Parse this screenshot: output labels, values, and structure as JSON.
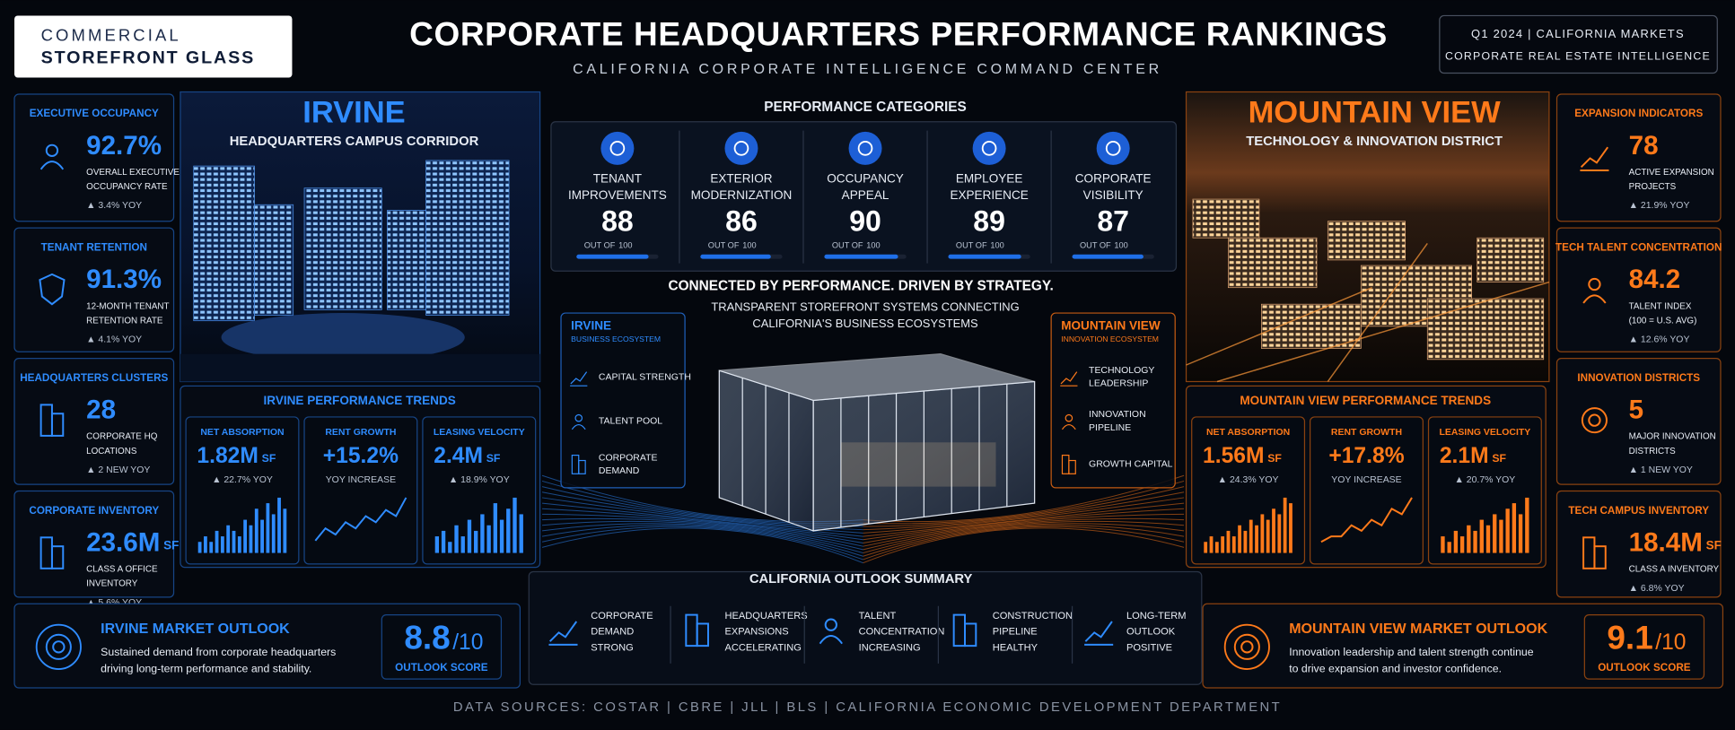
{
  "logo": {
    "line1": "COMMERCIAL",
    "line2": "STOREFRONT GLASS"
  },
  "header": {
    "title": "CORPORATE HEADQUARTERS PERFORMANCE RANKINGS",
    "subtitle": "CALIFORNIA CORPORATE INTELLIGENCE COMMAND CENTER",
    "period": "Q1 2024  |  CALIFORNIA MARKETS",
    "tagline": "CORPORATE REAL ESTATE INTELLIGENCE"
  },
  "left_metrics": [
    {
      "title": "EXECUTIVE OCCUPANCY",
      "value": "92.7%",
      "desc": [
        "OVERALL EXECUTIVE",
        "OCCUPANCY RATE"
      ],
      "change": "▲ 3.4% YOY"
    },
    {
      "title": "TENANT RETENTION",
      "value": "91.3%",
      "desc": [
        "12-MONTH TENANT",
        "RETENTION RATE"
      ],
      "change": "▲ 4.1% YOY"
    },
    {
      "title": "HEADQUARTERS CLUSTERS",
      "value": "28",
      "desc": [
        "CORPORATE HQ",
        "LOCATIONS"
      ],
      "change": "▲ 2 NEW YOY"
    },
    {
      "title": "CORPORATE INVENTORY",
      "value": "23.6M",
      "unit": "SF",
      "desc": [
        "CLASS A OFFICE",
        "INVENTORY"
      ],
      "change": "▲ 5.6% YOY"
    }
  ],
  "right_metrics": [
    {
      "title": "EXPANSION INDICATORS",
      "value": "78",
      "desc": [
        "ACTIVE EXPANSION",
        "PROJECTS"
      ],
      "change": "▲ 21.9% YOY"
    },
    {
      "title": "TECH TALENT CONCENTRATION",
      "value": "84.2",
      "desc": [
        "TALENT INDEX",
        "(100 = U.S. AVG)"
      ],
      "change": "▲ 12.6% YOY"
    },
    {
      "title": "INNOVATION DISTRICTS",
      "value": "5",
      "desc": [
        "MAJOR INNOVATION",
        "DISTRICTS"
      ],
      "change": "▲ 1 NEW YOY"
    },
    {
      "title": "TECH CAMPUS INVENTORY",
      "value": "18.4M",
      "unit": "SF",
      "desc": [
        "CLASS A INVENTORY"
      ],
      "change": "▲ 6.8% YOY"
    }
  ],
  "irvine": {
    "name": "IRVINE",
    "subtitle": "HEADQUARTERS CAMPUS CORRIDOR",
    "trends_title": "IRVINE PERFORMANCE TRENDS",
    "trends": [
      {
        "label": "NET ABSORPTION",
        "value": "1.82M",
        "unit": "SF",
        "note": "▲ 22.7% YOY",
        "chart": "bar",
        "series": [
          2,
          3,
          2,
          4,
          3,
          5,
          4,
          3,
          6,
          5,
          8,
          6,
          9,
          7,
          10,
          8
        ]
      },
      {
        "label": "RENT GROWTH",
        "value": "+15.2%",
        "note": "YOY INCREASE",
        "chart": "line",
        "series": [
          2,
          4,
          3,
          5,
          4,
          6,
          5,
          7,
          6,
          9
        ]
      },
      {
        "label": "LEASING VELOCITY",
        "value": "2.4M",
        "unit": "SF",
        "note": "▲ 18.9% YOY",
        "chart": "bar",
        "series": [
          3,
          4,
          2,
          5,
          3,
          6,
          4,
          7,
          5,
          9,
          6,
          8,
          10,
          7
        ]
      }
    ]
  },
  "mountain_view": {
    "name": "MOUNTAIN VIEW",
    "subtitle": "TECHNOLOGY & INNOVATION DISTRICT",
    "trends_title": "MOUNTAIN VIEW PERFORMANCE TRENDS",
    "trends": [
      {
        "label": "NET ABSORPTION",
        "value": "1.56M",
        "unit": "SF",
        "note": "▲ 24.3% YOY",
        "chart": "bar",
        "series": [
          2,
          3,
          2,
          3,
          4,
          3,
          5,
          4,
          6,
          5,
          7,
          6,
          8,
          7,
          10,
          9
        ]
      },
      {
        "label": "RENT GROWTH",
        "value": "+17.8%",
        "note": "YOY INCREASE",
        "chart": "line",
        "series": [
          2,
          3,
          3,
          5,
          4,
          6,
          5,
          8,
          7,
          10
        ]
      },
      {
        "label": "LEASING VELOCITY",
        "value": "2.1M",
        "unit": "SF",
        "note": "▲ 20.7% YOY",
        "chart": "bar",
        "series": [
          3,
          2,
          4,
          3,
          5,
          4,
          6,
          5,
          7,
          6,
          8,
          9,
          7,
          10
        ]
      }
    ]
  },
  "categories": {
    "title": "PERFORMANCE CATEGORIES",
    "scale": {
      "prefix": "OUT OF",
      "max": 100
    },
    "items": [
      {
        "name": [
          "TENANT",
          "IMPROVEMENTS"
        ],
        "score": 88
      },
      {
        "name": [
          "EXTERIOR",
          "MODERNIZATION"
        ],
        "score": 86
      },
      {
        "name": [
          "OCCUPANCY",
          "APPEAL"
        ],
        "score": 90
      },
      {
        "name": [
          "EMPLOYEE",
          "EXPERIENCE"
        ],
        "score": 89
      },
      {
        "name": [
          "CORPORATE",
          "VISIBILITY"
        ],
        "score": 87
      }
    ]
  },
  "center": {
    "headline": "CONNECTED BY PERFORMANCE. DRIVEN BY STRATEGY.",
    "sub": [
      "TRANSPARENT STOREFRONT SYSTEMS CONNECTING",
      "CALIFORNIA'S BUSINESS ECOSYSTEMS"
    ],
    "irvine_eco": {
      "title": "IRVINE",
      "subtitle": "BUSINESS ECOSYSTEM",
      "items": [
        [
          "CAPITAL STRENGTH"
        ],
        [
          "TALENT POOL"
        ],
        [
          "CORPORATE",
          "DEMAND"
        ]
      ]
    },
    "mv_eco": {
      "title": "MOUNTAIN VIEW",
      "subtitle": "INNOVATION ECOSYSTEM",
      "items": [
        [
          "TECHNOLOGY",
          "LEADERSHIP"
        ],
        [
          "INNOVATION",
          "PIPELINE"
        ],
        [
          "GROWTH CAPITAL"
        ]
      ]
    }
  },
  "outlook_summary": {
    "title": "CALIFORNIA OUTLOOK SUMMARY",
    "items": [
      [
        "CORPORATE",
        "DEMAND",
        "STRONG"
      ],
      [
        "HEADQUARTERS",
        "EXPANSIONS",
        "ACCELERATING"
      ],
      [
        "TALENT",
        "CONCENTRATION",
        "INCREASING"
      ],
      [
        "CONSTRUCTION",
        "PIPELINE",
        "HEALTHY"
      ],
      [
        "LONG-TERM",
        "OUTLOOK",
        "POSITIVE"
      ]
    ]
  },
  "irvine_outlook": {
    "title": "IRVINE MARKET OUTLOOK",
    "text": [
      "Sustained demand from corporate headquarters",
      "driving long-term performance and stability."
    ],
    "score": "8.8",
    "denominator": "/10",
    "score_label": "OUTLOOK SCORE"
  },
  "mv_outlook": {
    "title": "MOUNTAIN VIEW MARKET OUTLOOK",
    "text": [
      "Innovation leadership and talent strength continue",
      "to drive expansion and investor confidence."
    ],
    "score": "9.1",
    "denominator": "/10",
    "score_label": "OUTLOOK SCORE"
  },
  "footer": "DATA SOURCES: COSTAR  |  CBRE  |  JLL  |  BLS  |  CALIFORNIA ECONOMIC DEVELOPMENT DEPARTMENT"
}
